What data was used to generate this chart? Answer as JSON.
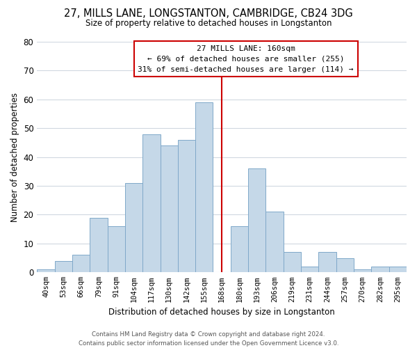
{
  "title": "27, MILLS LANE, LONGSTANTON, CAMBRIDGE, CB24 3DG",
  "subtitle": "Size of property relative to detached houses in Longstanton",
  "xlabel": "Distribution of detached houses by size in Longstanton",
  "ylabel": "Number of detached properties",
  "bar_labels": [
    "40sqm",
    "53sqm",
    "66sqm",
    "79sqm",
    "91sqm",
    "104sqm",
    "117sqm",
    "130sqm",
    "142sqm",
    "155sqm",
    "168sqm",
    "180sqm",
    "193sqm",
    "206sqm",
    "219sqm",
    "231sqm",
    "244sqm",
    "257sqm",
    "270sqm",
    "282sqm",
    "295sqm"
  ],
  "bar_values": [
    1,
    4,
    6,
    19,
    16,
    31,
    48,
    44,
    46,
    59,
    0,
    16,
    36,
    21,
    7,
    2,
    7,
    5,
    1,
    2,
    2
  ],
  "bar_color": "#c5d8e8",
  "bar_edge_color": "#7fa8c9",
  "marker_line_x_label": "168sqm",
  "marker_line_color": "#cc0000",
  "ylim": [
    0,
    80
  ],
  "yticks": [
    0,
    10,
    20,
    30,
    40,
    50,
    60,
    70,
    80
  ],
  "annotation_title": "27 MILLS LANE: 160sqm",
  "annotation_line1": "← 69% of detached houses are smaller (255)",
  "annotation_line2": "31% of semi-detached houses are larger (114) →",
  "annotation_box_color": "#ffffff",
  "annotation_box_edge_color": "#cc0000",
  "footer_line1": "Contains HM Land Registry data © Crown copyright and database right 2024.",
  "footer_line2": "Contains public sector information licensed under the Open Government Licence v3.0.",
  "background_color": "#ffffff",
  "grid_color": "#d0d8e0"
}
